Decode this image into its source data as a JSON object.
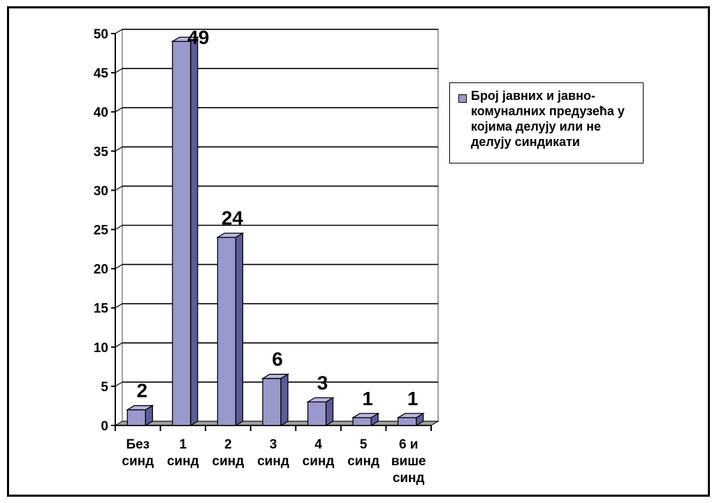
{
  "chart_data": {
    "type": "bar",
    "categories": [
      [
        "Без",
        "синд"
      ],
      [
        "1",
        "синд"
      ],
      [
        "2",
        "синд"
      ],
      [
        "3",
        "синд"
      ],
      [
        "4",
        "синд"
      ],
      [
        "5",
        "синд"
      ],
      [
        "6 и",
        "више",
        "синд"
      ]
    ],
    "series": [
      {
        "name": "Број јавних и јавно-комуналних предузећа у којима делују или не делују синдикати",
        "values": [
          2,
          49,
          24,
          6,
          3,
          1,
          1
        ]
      }
    ],
    "data_labels": [
      "2",
      "49",
      "24",
      "6",
      "3",
      "1",
      "1"
    ],
    "ylim": [
      0,
      50
    ],
    "yticks": [
      "0",
      "5",
      "10",
      "15",
      "20",
      "25",
      "30",
      "35",
      "40",
      "45",
      "50"
    ],
    "legend_position": "right",
    "grid": true,
    "bar_color": "#9999cc",
    "bar_side_color": "#5c5c99",
    "bar_top_color": "#b8b8e0",
    "floor_color": "#a0a0a0"
  },
  "legend": {
    "lines": [
      "Број јавних и јавно-",
      "комуналних предузећа у",
      "којима делују или не",
      "делују синдикати"
    ]
  }
}
